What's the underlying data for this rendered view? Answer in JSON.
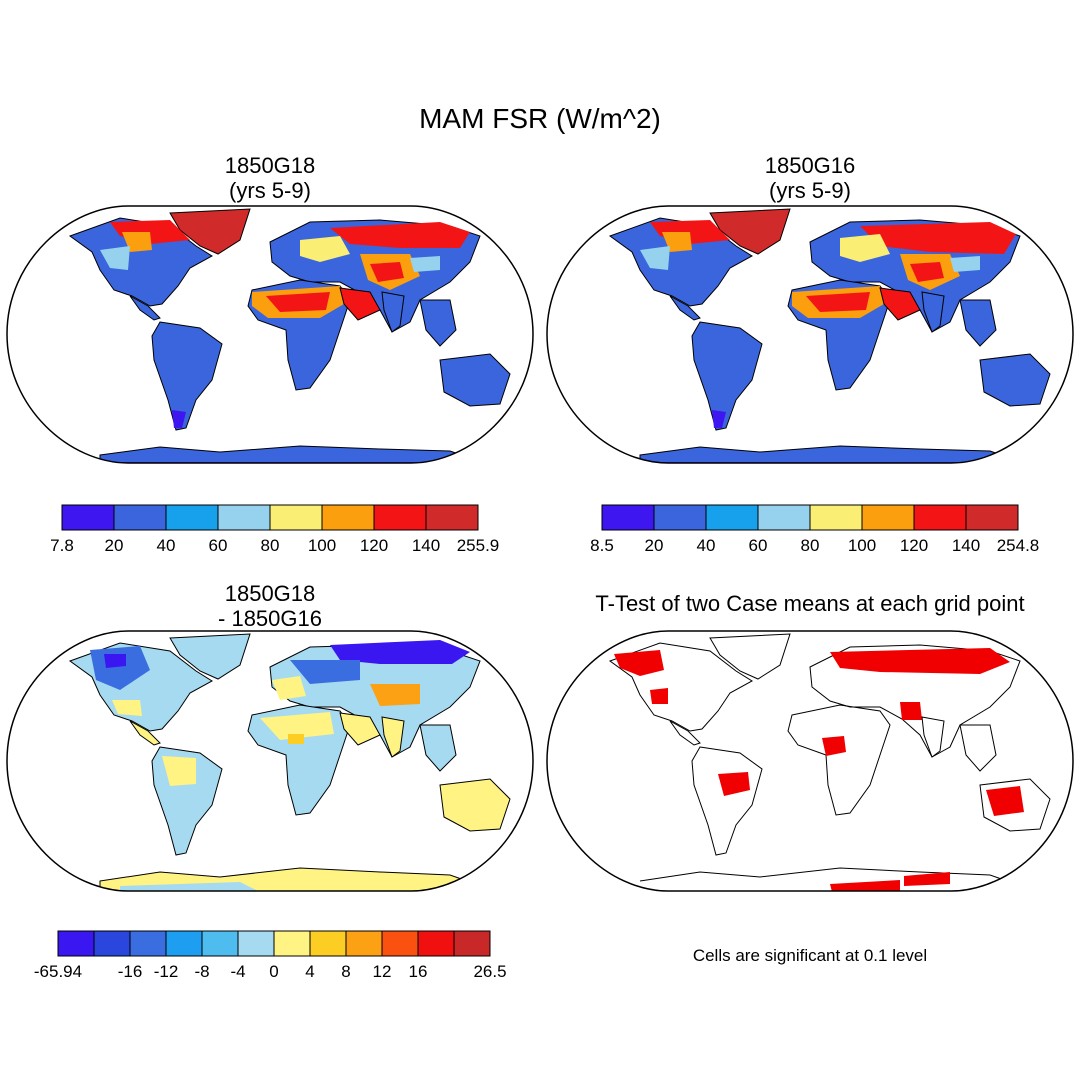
{
  "figure": {
    "title": "MAM FSR (W/m^2)",
    "panels": [
      {
        "id": "p1",
        "title_line1": "1850G18",
        "title_line2": "(yrs 5-9)",
        "colorbar": {
          "colors": [
            "#3d16f0",
            "#3a65dc",
            "#17a1ec",
            "#96d2ee",
            "#fbee74",
            "#fb9f0e",
            "#f31515",
            "#d02a2a"
          ],
          "labels": [
            "7.8",
            "20",
            "40",
            "60",
            "80",
            "100",
            "120",
            "140",
            "255.9"
          ]
        }
      },
      {
        "id": "p2",
        "title_line1": "1850G16",
        "title_line2": "(yrs 5-9)",
        "colorbar": {
          "colors": [
            "#3d16f0",
            "#3a65dc",
            "#17a1ec",
            "#96d2ee",
            "#fbee74",
            "#fb9f0e",
            "#f31515",
            "#d02a2a"
          ],
          "labels": [
            "8.5",
            "20",
            "40",
            "60",
            "80",
            "100",
            "120",
            "140",
            "254.8"
          ]
        }
      },
      {
        "id": "p3",
        "title_line1": "1850G18",
        "title_line2": "- 1850G16",
        "colorbar": {
          "colors": [
            "#3a16f0",
            "#2a46dc",
            "#3a6ee0",
            "#1e9ef0",
            "#4fbcf0",
            "#a6daf0",
            "#fff383",
            "#fcce24",
            "#fca014",
            "#fa5010",
            "#f01010",
            "#c82828"
          ],
          "labels": [
            "-65.94",
            "",
            "-16",
            "-12",
            "-8",
            "-4",
            "0",
            "4",
            "8",
            "12",
            "16",
            "",
            "26.5"
          ]
        }
      },
      {
        "id": "p4",
        "title_line1": "T-Test of two Case means at each grid point",
        "title_line2": "",
        "note": "Cells are significant at 0.1 level"
      }
    ]
  }
}
